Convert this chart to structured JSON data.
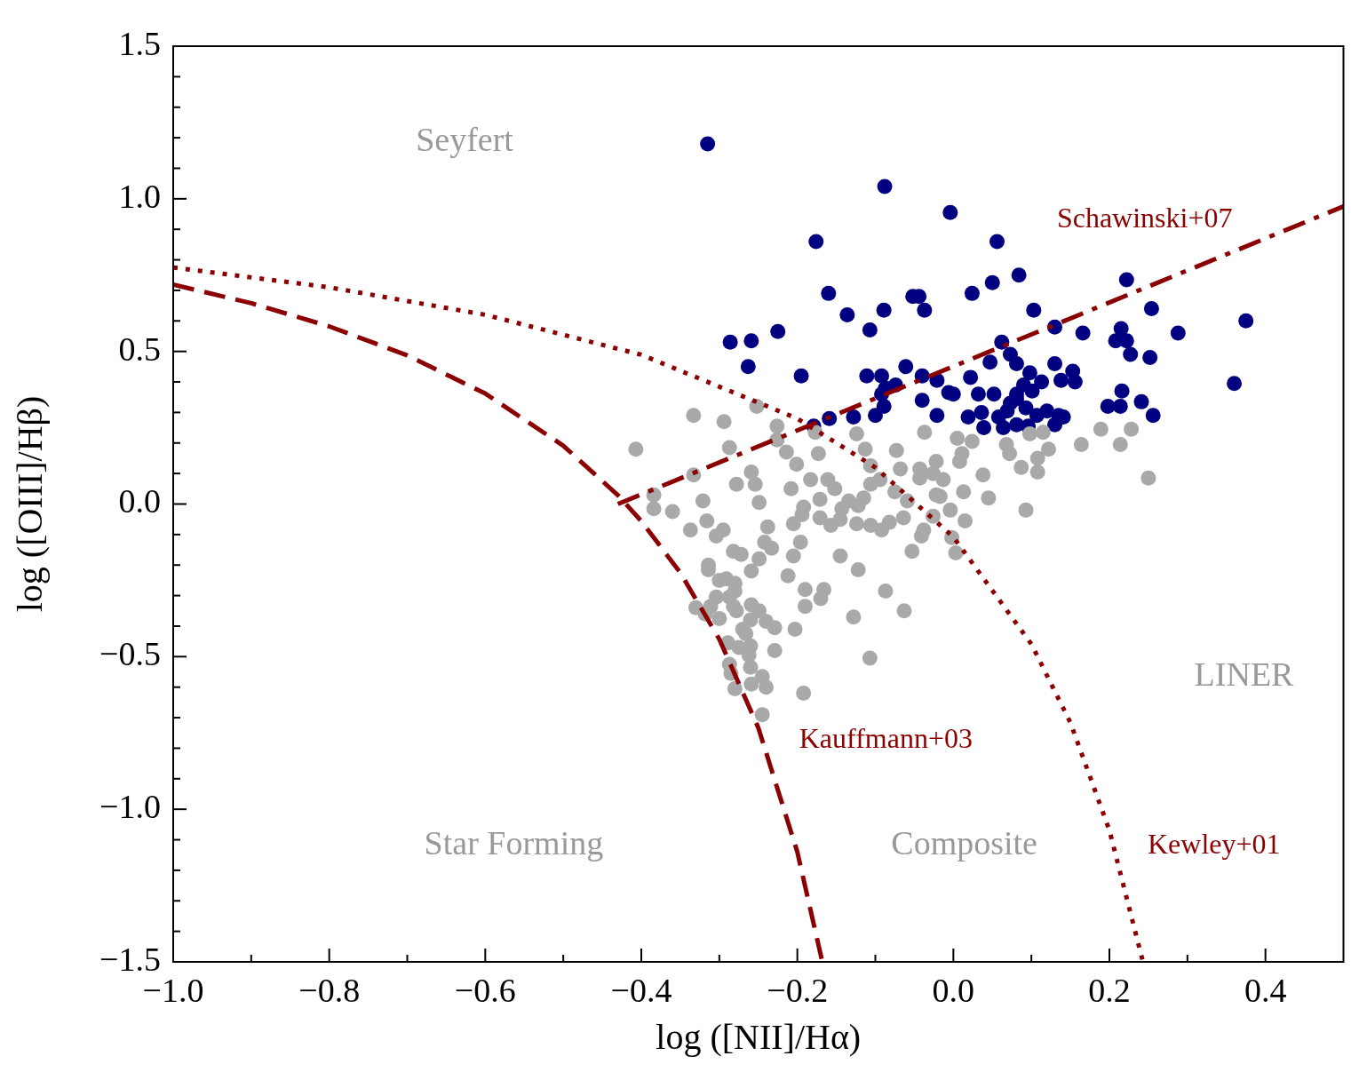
{
  "chart_data": {
    "type": "scatter",
    "xlabel": "log ([NII]/Hα)",
    "ylabel": "log ([OIII]/Hβ)",
    "xlim": [
      -1.0,
      0.5
    ],
    "ylim": [
      -1.5,
      1.5
    ],
    "xticks": [
      {
        "value": -1.0,
        "label": "−1.0"
      },
      {
        "value": -0.9,
        "label": null
      },
      {
        "value": -0.8,
        "label": "−0.8"
      },
      {
        "value": -0.7,
        "label": null
      },
      {
        "value": -0.6,
        "label": "−0.6"
      },
      {
        "value": -0.5,
        "label": null
      },
      {
        "value": -0.4,
        "label": "−0.4"
      },
      {
        "value": -0.3,
        "label": null
      },
      {
        "value": -0.2,
        "label": "−0.2"
      },
      {
        "value": -0.1,
        "label": null
      },
      {
        "value": 0,
        "label": "0.0"
      },
      {
        "value": 0.1,
        "label": null
      },
      {
        "value": 0.2,
        "label": "0.2"
      },
      {
        "value": 0.3,
        "label": null
      },
      {
        "value": 0.4,
        "label": "0.4"
      }
    ],
    "yticks": [
      {
        "value": -1.5,
        "label": "−1.5"
      },
      {
        "value": -1.4,
        "label": null
      },
      {
        "value": -1.3,
        "label": null
      },
      {
        "value": -1.2,
        "label": null
      },
      {
        "value": -1.1,
        "label": null
      },
      {
        "value": -1.0,
        "label": "−1.0"
      },
      {
        "value": -0.9,
        "label": null
      },
      {
        "value": -0.8,
        "label": null
      },
      {
        "value": -0.7,
        "label": null
      },
      {
        "value": -0.6,
        "label": null
      },
      {
        "value": -0.5,
        "label": "−0.5"
      },
      {
        "value": -0.4,
        "label": null
      },
      {
        "value": -0.3,
        "label": null
      },
      {
        "value": -0.2,
        "label": null
      },
      {
        "value": -0.1,
        "label": null
      },
      {
        "value": 0,
        "label": "0.0"
      },
      {
        "value": 0.1,
        "label": null
      },
      {
        "value": 0.2,
        "label": null
      },
      {
        "value": 0.3,
        "label": null
      },
      {
        "value": 0.4,
        "label": null
      },
      {
        "value": 0.5,
        "label": "0.5"
      },
      {
        "value": 0.6,
        "label": null
      },
      {
        "value": 0.7,
        "label": null
      },
      {
        "value": 0.8,
        "label": null
      },
      {
        "value": 0.9,
        "label": null
      },
      {
        "value": 1.0,
        "label": "1.0"
      },
      {
        "value": 1.1,
        "label": null
      },
      {
        "value": 1.2,
        "label": null
      },
      {
        "value": 1.3,
        "label": null
      },
      {
        "value": 1.4,
        "label": null
      },
      {
        "value": 1.5,
        "label": "1.5"
      }
    ],
    "grid": false,
    "legend": false,
    "series": [
      {
        "type": "scatter",
        "marker": "circle",
        "color": "#a9a9a9",
        "x": [
          -0.333,
          -0.294,
          -0.407,
          -0.252,
          -0.226,
          -0.226,
          -0.287,
          -0.214,
          -0.201,
          -0.173,
          -0.177,
          -0.124,
          -0.113,
          -0.106,
          -0.073,
          -0.037,
          0.005,
          0.024,
          0.068,
          0.072,
          0.098,
          0.115,
          0.122,
          0.108,
          0.108,
          0.087,
          0.164,
          0.189,
          0.214,
          0.228,
          0.25,
          0.093,
          0.045,
          0.013,
          0.038,
          0.008,
          0.011,
          -0.013,
          -0.043,
          -0.026,
          -0.022,
          -0.017,
          -0.004,
          0.015,
          -0.026,
          -0.038,
          -0.041,
          -0.053,
          -0.002,
          0.003,
          -0.075,
          -0.064,
          -0.068,
          -0.059,
          -0.106,
          -0.094,
          -0.106,
          -0.092,
          -0.082,
          -0.124,
          -0.145,
          -0.157,
          -0.134,
          -0.115,
          -0.143,
          -0.122,
          -0.183,
          -0.161,
          -0.152,
          -0.171,
          -0.171,
          -0.208,
          -0.192,
          -0.194,
          -0.205,
          -0.196,
          -0.205,
          -0.212,
          -0.145,
          -0.122,
          -0.19,
          -0.166,
          -0.17,
          -0.19,
          -0.203,
          -0.229,
          -0.192,
          -0.128,
          -0.107,
          -0.087,
          -0.063,
          -0.238,
          -0.249,
          -0.254,
          -0.259,
          -0.278,
          -0.321,
          -0.333,
          -0.384,
          -0.384,
          -0.36,
          -0.337,
          -0.316,
          -0.295,
          -0.304,
          -0.242,
          -0.233,
          -0.249,
          -0.282,
          -0.272,
          -0.259,
          -0.314,
          -0.314,
          -0.3,
          -0.291,
          -0.28,
          -0.28,
          -0.304,
          -0.287,
          -0.282,
          -0.311,
          -0.33,
          -0.318,
          -0.3,
          -0.278,
          -0.259,
          -0.249,
          -0.26,
          -0.24,
          -0.229,
          -0.27,
          -0.266,
          -0.289,
          -0.275,
          -0.26,
          -0.262,
          -0.287,
          -0.285,
          -0.26,
          -0.245,
          -0.259,
          -0.28,
          -0.24,
          -0.245,
          -0.022,
          -0.043
        ],
        "values": [
          0.29,
          0.27,
          0.18,
          0.32,
          0.255,
          0.21,
          0.185,
          0.17,
          0.13,
          0.165,
          0.235,
          0.23,
          0.18,
          0.125,
          0.175,
          0.235,
          0.215,
          0.205,
          0.195,
          0.165,
          0.23,
          0.235,
          0.18,
          0.15,
          0.105,
          0.12,
          0.195,
          0.245,
          0.195,
          0.245,
          0.085,
          -0.02,
          0.02,
          0.04,
          0.095,
          0.14,
          0.165,
          0.08,
          0.115,
          0.1,
          0.14,
          0.025,
          -0.02,
          -0.055,
          -0.04,
          -0.085,
          -0.105,
          -0.155,
          -0.11,
          -0.16,
          0.04,
          -0.045,
          0.115,
          0.01,
          0.065,
          0.08,
          -0.07,
          -0.085,
          -0.06,
          -0.065,
          -0.05,
          -0.07,
          0.01,
          0.02,
          -0.015,
          -0.005,
          0.08,
          0.08,
          0.05,
          0.015,
          -0.045,
          0.05,
          -0.01,
          -0.035,
          -0.065,
          -0.125,
          -0.17,
          -0.235,
          -0.17,
          -0.215,
          -0.28,
          -0.28,
          -0.31,
          -0.335,
          -0.41,
          -0.48,
          -0.62,
          -0.37,
          -0.505,
          -0.285,
          -0.35,
          -0.075,
          0.005,
          0.065,
          0.105,
          0.065,
          0.01,
          0.095,
          0.03,
          -0.015,
          -0.025,
          -0.085,
          -0.055,
          -0.085,
          -0.105,
          -0.125,
          -0.145,
          -0.18,
          -0.155,
          -0.165,
          -0.22,
          -0.2,
          -0.215,
          -0.25,
          -0.245,
          -0.26,
          -0.285,
          -0.305,
          -0.305,
          -0.335,
          -0.335,
          -0.34,
          -0.36,
          -0.375,
          -0.35,
          -0.33,
          -0.35,
          -0.38,
          -0.385,
          -0.405,
          -0.41,
          -0.425,
          -0.455,
          -0.47,
          -0.465,
          -0.495,
          -0.525,
          -0.555,
          -0.535,
          -0.565,
          -0.59,
          -0.605,
          -0.6,
          -0.69,
          0.03,
          0.085
        ]
      },
      {
        "type": "scatter",
        "marker": "circle",
        "color": "#000080",
        "x": [
          -0.315,
          -0.088,
          -0.004,
          -0.176,
          0.056,
          -0.16,
          -0.052,
          -0.044,
          0.024,
          0.05,
          0.084,
          0.222,
          -0.136,
          -0.089,
          -0.037,
          -0.107,
          -0.225,
          0.103,
          0.254,
          0.375,
          -0.286,
          -0.259,
          -0.263,
          -0.195,
          0.062,
          0.13,
          0.166,
          0.215,
          0.208,
          0.222,
          0.227,
          0.252,
          0.288,
          0.36,
          -0.061,
          -0.111,
          -0.092,
          -0.04,
          -0.021,
          0.022,
          0.047,
          0.073,
          0.081,
          0.098,
          0.13,
          0.153,
          0.156,
          0.138,
          0.113,
          -0.087,
          -0.074,
          -0.092,
          -0.006,
          0.0,
          -0.04,
          0.032,
          0.052,
          0.081,
          0.101,
          0.216,
          0.241,
          0.198,
          0.214,
          0.256,
          -0.1,
          -0.128,
          -0.159,
          -0.179,
          -0.089,
          -0.021,
          0.019,
          0.036,
          0.039,
          0.058,
          0.064,
          0.069,
          0.093,
          0.107,
          0.12,
          0.135,
          0.141,
          0.13,
          0.096,
          0.081,
          0.073,
          0.081,
          0.09
        ],
        "values": [
          1.18,
          1.04,
          0.955,
          0.86,
          0.86,
          0.69,
          0.68,
          0.68,
          0.69,
          0.725,
          0.75,
          0.735,
          0.62,
          0.635,
          0.635,
          0.57,
          0.565,
          0.635,
          0.64,
          0.6,
          0.53,
          0.535,
          0.45,
          0.42,
          0.53,
          0.58,
          0.56,
          0.575,
          0.535,
          0.535,
          0.49,
          0.48,
          0.56,
          0.395,
          0.45,
          0.42,
          0.42,
          0.42,
          0.405,
          0.415,
          0.465,
          0.49,
          0.46,
          0.43,
          0.46,
          0.435,
          0.4,
          0.405,
          0.4,
          0.38,
          0.39,
          0.36,
          0.365,
          0.36,
          0.34,
          0.36,
          0.36,
          0.36,
          0.37,
          0.37,
          0.335,
          0.32,
          0.32,
          0.29,
          0.29,
          0.285,
          0.28,
          0.255,
          0.32,
          0.29,
          0.285,
          0.3,
          0.25,
          0.285,
          0.25,
          0.305,
          0.315,
          0.29,
          0.305,
          0.29,
          0.285,
          0.26,
          0.255,
          0.26,
          0.33,
          0.345,
          0.39
        ]
      },
      {
        "type": "line",
        "name": "Kauffmann+03",
        "marker": "none",
        "line_style": "dashed",
        "color": "#8b0000",
        "x": [
          -1.0,
          -0.9,
          -0.8,
          -0.7,
          -0.6,
          -0.5,
          -0.43,
          -0.4,
          -0.35,
          -0.3,
          -0.25,
          -0.2,
          -0.168
        ],
        "values": [
          0.719,
          0.658,
          0.582,
          0.487,
          0.362,
          0.191,
          0.029,
          -0.056,
          -0.225,
          -0.443,
          -0.733,
          -1.14,
          -1.5
        ]
      },
      {
        "type": "line",
        "name": "Kewley+01",
        "marker": "none",
        "line_style": "dotted",
        "color": "#8b0000",
        "x": [
          -1.0,
          -0.8,
          -0.6,
          -0.4,
          -0.2,
          -0.1,
          0.0,
          0.1,
          0.15,
          0.2,
          0.243
        ],
        "values": [
          0.775,
          0.71,
          0.62,
          0.489,
          0.28,
          0.12,
          -0.108,
          -0.459,
          -0.716,
          -1.069,
          -1.5
        ]
      },
      {
        "type": "line",
        "name": "Schawinski+07",
        "marker": "none",
        "line_style": "dashdot",
        "color": "#8b0000",
        "x": [
          -0.43,
          0.5
        ],
        "values": [
          0.0,
          0.975
        ]
      }
    ],
    "annotations": [
      "Seyfert",
      "Star Forming",
      "Composite",
      "LINER"
    ]
  }
}
